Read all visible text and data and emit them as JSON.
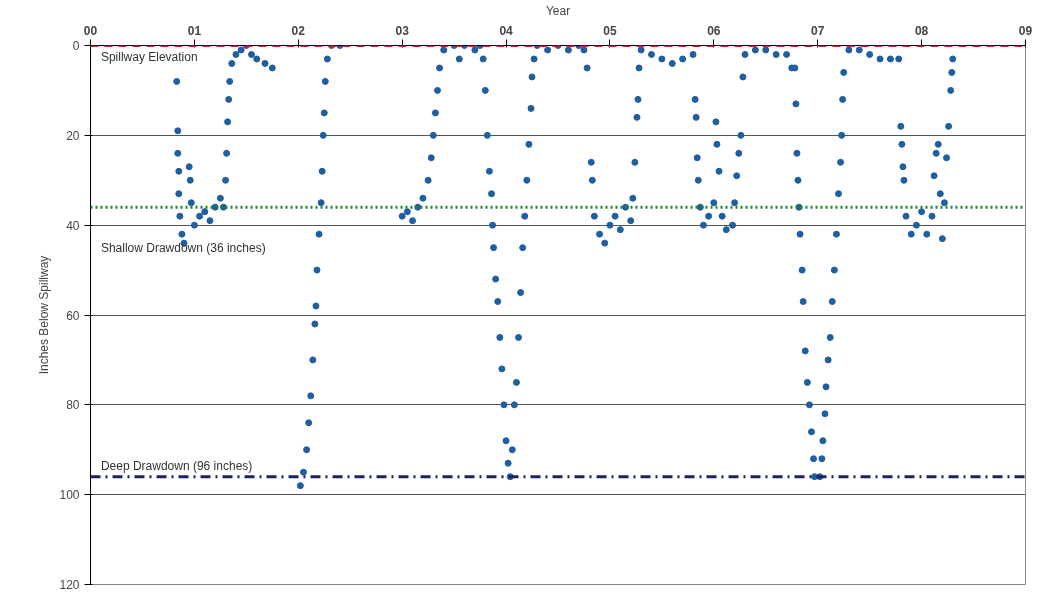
{
  "chart_data": {
    "type": "scatter",
    "xlabel": "Year",
    "ylabel": "Inches Below Spillway",
    "marker": "circle",
    "grid": "y",
    "xlim": [
      2000,
      2009
    ],
    "ylim": [
      120,
      0
    ],
    "xticks": [
      {
        "value": 2000,
        "label": "00"
      },
      {
        "value": 2001,
        "label": "01"
      },
      {
        "value": 2002,
        "label": "02"
      },
      {
        "value": 2003,
        "label": "03"
      },
      {
        "value": 2004,
        "label": "04"
      },
      {
        "value": 2005,
        "label": "05"
      },
      {
        "value": 2006,
        "label": "06"
      },
      {
        "value": 2007,
        "label": "07"
      },
      {
        "value": 2008,
        "label": "08"
      },
      {
        "value": 2009,
        "label": "09"
      }
    ],
    "yticks": [
      0,
      20,
      40,
      60,
      80,
      100,
      120
    ],
    "ref_lines": [
      {
        "axis": "y",
        "value": 0,
        "label": "Spillway Elevation",
        "color": "#cc1f2f",
        "line_style": "dashed"
      },
      {
        "axis": "y",
        "value": 36,
        "label": "Shallow Drawdown (36 inches)",
        "color": "#1a8a2a",
        "line_style": "dotted"
      },
      {
        "axis": "y",
        "value": 96,
        "label": "Deep Drawdown (96 inches)",
        "color": "#1c2260",
        "line_style": "dashdot"
      }
    ],
    "series": [
      {
        "color": "#1f5fa0",
        "x": [
          2000.83,
          2000.84,
          2000.84,
          2000.85,
          2000.85,
          2000.86,
          2000.88,
          2000.9,
          2000.95,
          2000.96,
          2000.97,
          2001.0,
          2001.05,
          2001.1,
          2001.15,
          2001.2,
          2001.25,
          2001.28,
          2001.3,
          2001.31,
          2001.32,
          2001.33,
          2001.34,
          2001.36,
          2001.4,
          2001.45,
          2001.5,
          2001.55,
          2001.6,
          2001.68,
          2001.75,
          2002.02,
          2002.05,
          2002.08,
          2002.1,
          2002.12,
          2002.14,
          2002.16,
          2002.17,
          2002.18,
          2002.2,
          2002.22,
          2002.23,
          2002.24,
          2002.25,
          2002.26,
          2002.28,
          2002.32,
          2002.4,
          2003.0,
          2003.05,
          2003.1,
          2003.15,
          2003.2,
          2003.25,
          2003.28,
          2003.3,
          2003.32,
          2003.34,
          2003.36,
          2003.4,
          2003.5,
          2003.55,
          2003.6,
          2003.7,
          2003.75,
          2003.78,
          2003.8,
          2003.82,
          2003.84,
          2003.86,
          2003.87,
          2003.88,
          2003.9,
          2003.92,
          2003.94,
          2003.96,
          2003.98,
          2004.0,
          2004.02,
          2004.04,
          2004.06,
          2004.08,
          2004.1,
          2004.12,
          2004.14,
          2004.16,
          2004.18,
          2004.2,
          2004.22,
          2004.24,
          2004.25,
          2004.27,
          2004.3,
          2004.4,
          2004.5,
          2004.6,
          2004.7,
          2004.75,
          2004.78,
          2004.82,
          2004.83,
          2004.85,
          2004.9,
          2004.95,
          2005.0,
          2005.05,
          2005.1,
          2005.15,
          2005.2,
          2005.22,
          2005.24,
          2005.26,
          2005.27,
          2005.28,
          2005.3,
          2005.4,
          2005.5,
          2005.6,
          2005.7,
          2005.8,
          2005.82,
          2005.83,
          2005.84,
          2005.85,
          2005.87,
          2005.9,
          2005.95,
          2006.0,
          2006.02,
          2006.03,
          2006.05,
          2006.08,
          2006.12,
          2006.18,
          2006.2,
          2006.22,
          2006.24,
          2006.26,
          2006.28,
          2006.3,
          2006.4,
          2006.5,
          2006.6,
          2006.7,
          2006.75,
          2006.78,
          2006.79,
          2006.8,
          2006.81,
          2006.82,
          2006.83,
          2006.85,
          2006.86,
          2006.88,
          2006.9,
          2006.92,
          2006.94,
          2006.96,
          2006.97,
          2007.02,
          2007.04,
          2007.05,
          2007.07,
          2007.08,
          2007.1,
          2007.12,
          2007.14,
          2007.16,
          2007.18,
          2007.2,
          2007.22,
          2007.23,
          2007.24,
          2007.25,
          2007.3,
          2007.4,
          2007.5,
          2007.6,
          2007.7,
          2007.78,
          2007.8,
          2007.81,
          2007.82,
          2007.83,
          2007.85,
          2007.9,
          2007.95,
          2008.0,
          2008.05,
          2008.1,
          2008.12,
          2008.14,
          2008.16,
          2008.18,
          2008.2,
          2008.22,
          2008.24,
          2008.26,
          2008.28,
          2008.29,
          2008.3
        ],
        "values": [
          8,
          19,
          24,
          28,
          33,
          38,
          42,
          44,
          27,
          30,
          35,
          40,
          38,
          37,
          39,
          36,
          34,
          36,
          30,
          24,
          17,
          12,
          8,
          4,
          2,
          1,
          0,
          2,
          3,
          4,
          5,
          98,
          95,
          90,
          84,
          78,
          70,
          62,
          58,
          50,
          42,
          35,
          28,
          20,
          15,
          8,
          3,
          0,
          0,
          38,
          37,
          39,
          36,
          34,
          30,
          25,
          20,
          15,
          10,
          5,
          1,
          0,
          3,
          0,
          1,
          0,
          3,
          10,
          20,
          28,
          33,
          40,
          45,
          52,
          57,
          65,
          72,
          80,
          88,
          93,
          96,
          90,
          80,
          75,
          65,
          55,
          45,
          38,
          30,
          22,
          14,
          7,
          3,
          0,
          1,
          0,
          1,
          0,
          1,
          5,
          26,
          30,
          38,
          42,
          44,
          40,
          38,
          41,
          36,
          39,
          34,
          26,
          16,
          12,
          5,
          1,
          2,
          3,
          4,
          3,
          2,
          12,
          16,
          25,
          30,
          36,
          40,
          38,
          35,
          17,
          22,
          28,
          38,
          41,
          40,
          35,
          29,
          24,
          20,
          7,
          2,
          1,
          1,
          2,
          2,
          5,
          5,
          13,
          24,
          30,
          36,
          42,
          50,
          57,
          68,
          75,
          80,
          86,
          92,
          96,
          96,
          92,
          88,
          82,
          76,
          70,
          65,
          57,
          50,
          42,
          33,
          26,
          20,
          12,
          6,
          1,
          1,
          2,
          3,
          3,
          3,
          18,
          22,
          27,
          30,
          38,
          42,
          40,
          37,
          42,
          38,
          29,
          24,
          22,
          33,
          43,
          35,
          25,
          18,
          10,
          6,
          3
        ]
      }
    ]
  }
}
